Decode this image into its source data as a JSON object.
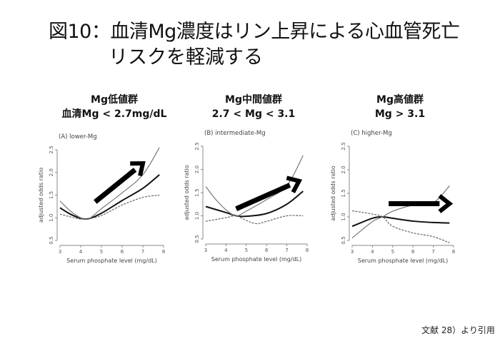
{
  "title_line1": "図10：血清Mg濃度はリン上昇による心血管死亡",
  "title_line2": "リスクを軽減する",
  "headers": [
    {
      "line1": "Mg低値群",
      "line2": "血清Mg < 2.7mg/dL"
    },
    {
      "line1": "Mg中間値群",
      "line2": "2.7 < Mg < 3.1"
    },
    {
      "line1": "Mg高値群",
      "line2": "Mg > 3.1"
    }
  ],
  "footer": "文献 28）より引用",
  "chart_data": [
    {
      "type": "line",
      "title": "(A) lower-Mg",
      "xlabel": "Serum phosphate level (mg/dL)",
      "ylabel": "adjusted odds ratio",
      "xlim": [
        3,
        8
      ],
      "ylim": [
        0.5,
        2.5
      ],
      "xticks": [
        "3",
        "4",
        "5",
        "6",
        "7",
        "8"
      ],
      "yticks": [
        "0.5",
        "1.0",
        "1.5",
        "2.0",
        "2.5"
      ],
      "series": [
        {
          "name": "estimate",
          "points": [
            [
              3,
              1.22
            ],
            [
              3.5,
              1.08
            ],
            [
              4,
              0.99
            ],
            [
              4.4,
              0.98
            ],
            [
              5,
              1.1
            ],
            [
              6,
              1.38
            ],
            [
              7,
              1.65
            ],
            [
              7.8,
              1.95
            ]
          ]
        },
        {
          "name": "upper CI",
          "points": [
            [
              3,
              1.37
            ],
            [
              3.5,
              1.15
            ],
            [
              4,
              1.0
            ],
            [
              4.4,
              0.98
            ],
            [
              5,
              1.2
            ],
            [
              6,
              1.55
            ],
            [
              7,
              1.95
            ],
            [
              7.8,
              2.55
            ]
          ]
        },
        {
          "name": "lower CI",
          "points": [
            [
              3,
              1.08
            ],
            [
              3.5,
              1.02
            ],
            [
              4,
              0.97
            ],
            [
              4.4,
              0.98
            ],
            [
              5,
              1.05
            ],
            [
              6,
              1.28
            ],
            [
              7,
              1.45
            ],
            [
              7.8,
              1.5
            ]
          ]
        }
      ],
      "arrow": [
        [
          4.7,
          1.35
        ],
        [
          7,
          2.2
        ]
      ]
    },
    {
      "type": "line",
      "title": "(B) intermediate-Mg",
      "xlabel": "Serum phosphate level (mg/dL)",
      "ylabel": "adjusted odds ratio",
      "xlim": [
        3,
        8
      ],
      "ylim": [
        0.5,
        2.5
      ],
      "xticks": [
        "3",
        "4",
        "5",
        "6",
        "7",
        "8"
      ],
      "yticks": [
        "0.5",
        "1.0",
        "1.5",
        "2.0",
        "2.5"
      ],
      "series": [
        {
          "name": "estimate",
          "points": [
            [
              3,
              1.2
            ],
            [
              4,
              1.07
            ],
            [
              4.5,
              1.0
            ],
            [
              5,
              0.99
            ],
            [
              6,
              1.05
            ],
            [
              7,
              1.25
            ],
            [
              7.8,
              1.53
            ]
          ]
        },
        {
          "name": "upper CI",
          "points": [
            [
              3,
              1.63
            ],
            [
              3.5,
              1.35
            ],
            [
              4,
              1.13
            ],
            [
              4.5,
              1.0
            ],
            [
              5,
              1.1
            ],
            [
              6,
              1.35
            ],
            [
              7,
              1.65
            ],
            [
              7.8,
              2.3
            ]
          ]
        },
        {
          "name": "lower CI",
          "points": [
            [
              3,
              0.88
            ],
            [
              4,
              0.96
            ],
            [
              4.5,
              1.0
            ],
            [
              5,
              0.9
            ],
            [
              5.5,
              0.83
            ],
            [
              6,
              0.88
            ],
            [
              7,
              1.0
            ],
            [
              7.8,
              1.0
            ]
          ]
        }
      ],
      "arrow": [
        [
          4.5,
          1.15
        ],
        [
          7.6,
          1.75
        ]
      ]
    },
    {
      "type": "line",
      "title": "(C) higher-Mg",
      "xlabel": "Serum phosphate level (mg/dL)",
      "ylabel": "adjusted odds ratio",
      "xlim": [
        3,
        8
      ],
      "ylim": [
        0.5,
        2.5
      ],
      "xticks": [
        "3",
        "4",
        "5",
        "6",
        "7",
        "8"
      ],
      "yticks": [
        "0.5",
        "1.0",
        "1.5",
        "2.0",
        "2.5"
      ],
      "series": [
        {
          "name": "estimate",
          "points": [
            [
              3,
              0.8
            ],
            [
              4,
              0.97
            ],
            [
              4.5,
              1.0
            ],
            [
              5,
              0.97
            ],
            [
              6,
              0.91
            ],
            [
              7,
              0.88
            ],
            [
              7.8,
              0.87
            ]
          ]
        },
        {
          "name": "upper CI",
          "points": [
            [
              3,
              0.55
            ],
            [
              4,
              0.9
            ],
            [
              4.5,
              1.0
            ],
            [
              5,
              1.12
            ],
            [
              6,
              1.25
            ],
            [
              7,
              1.3
            ],
            [
              7.8,
              1.66
            ]
          ]
        },
        {
          "name": "lower CI",
          "points": [
            [
              3,
              1.13
            ],
            [
              4,
              1.06
            ],
            [
              4.5,
              1.0
            ],
            [
              5,
              0.8
            ],
            [
              6,
              0.66
            ],
            [
              7,
              0.58
            ],
            [
              7.8,
              0.45
            ]
          ]
        }
      ],
      "arrow": [
        [
          4.8,
          1.28
        ],
        [
          7.8,
          1.28
        ]
      ]
    }
  ]
}
